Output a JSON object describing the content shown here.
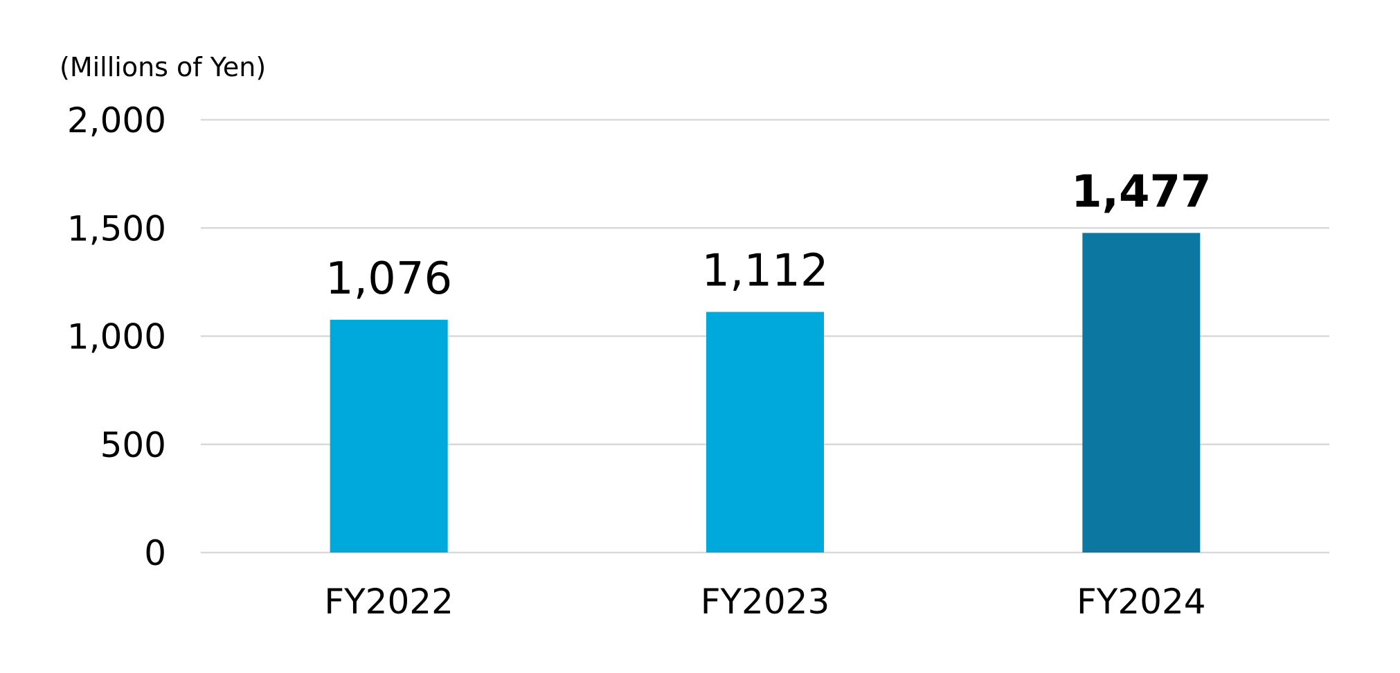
{
  "chart_data": {
    "type": "bar",
    "unit_label": "(Millions of Yen)",
    "categories": [
      "FY2022",
      "FY2023",
      "FY2024"
    ],
    "values": [
      1076,
      1112,
      1477
    ],
    "value_labels": [
      "1,076",
      "1,112",
      "1,477"
    ],
    "bold_labels": [
      false,
      false,
      true
    ],
    "bar_colors": [
      "#00a9dc",
      "#00a9dc",
      "#0c77a0"
    ],
    "ylim": [
      0,
      2000
    ],
    "yticks": [
      0,
      500,
      1000,
      1500,
      2000
    ],
    "ytick_labels": [
      "0",
      "500",
      "1,000",
      "1,500",
      "2,000"
    ],
    "grid": true,
    "legend": false
  }
}
